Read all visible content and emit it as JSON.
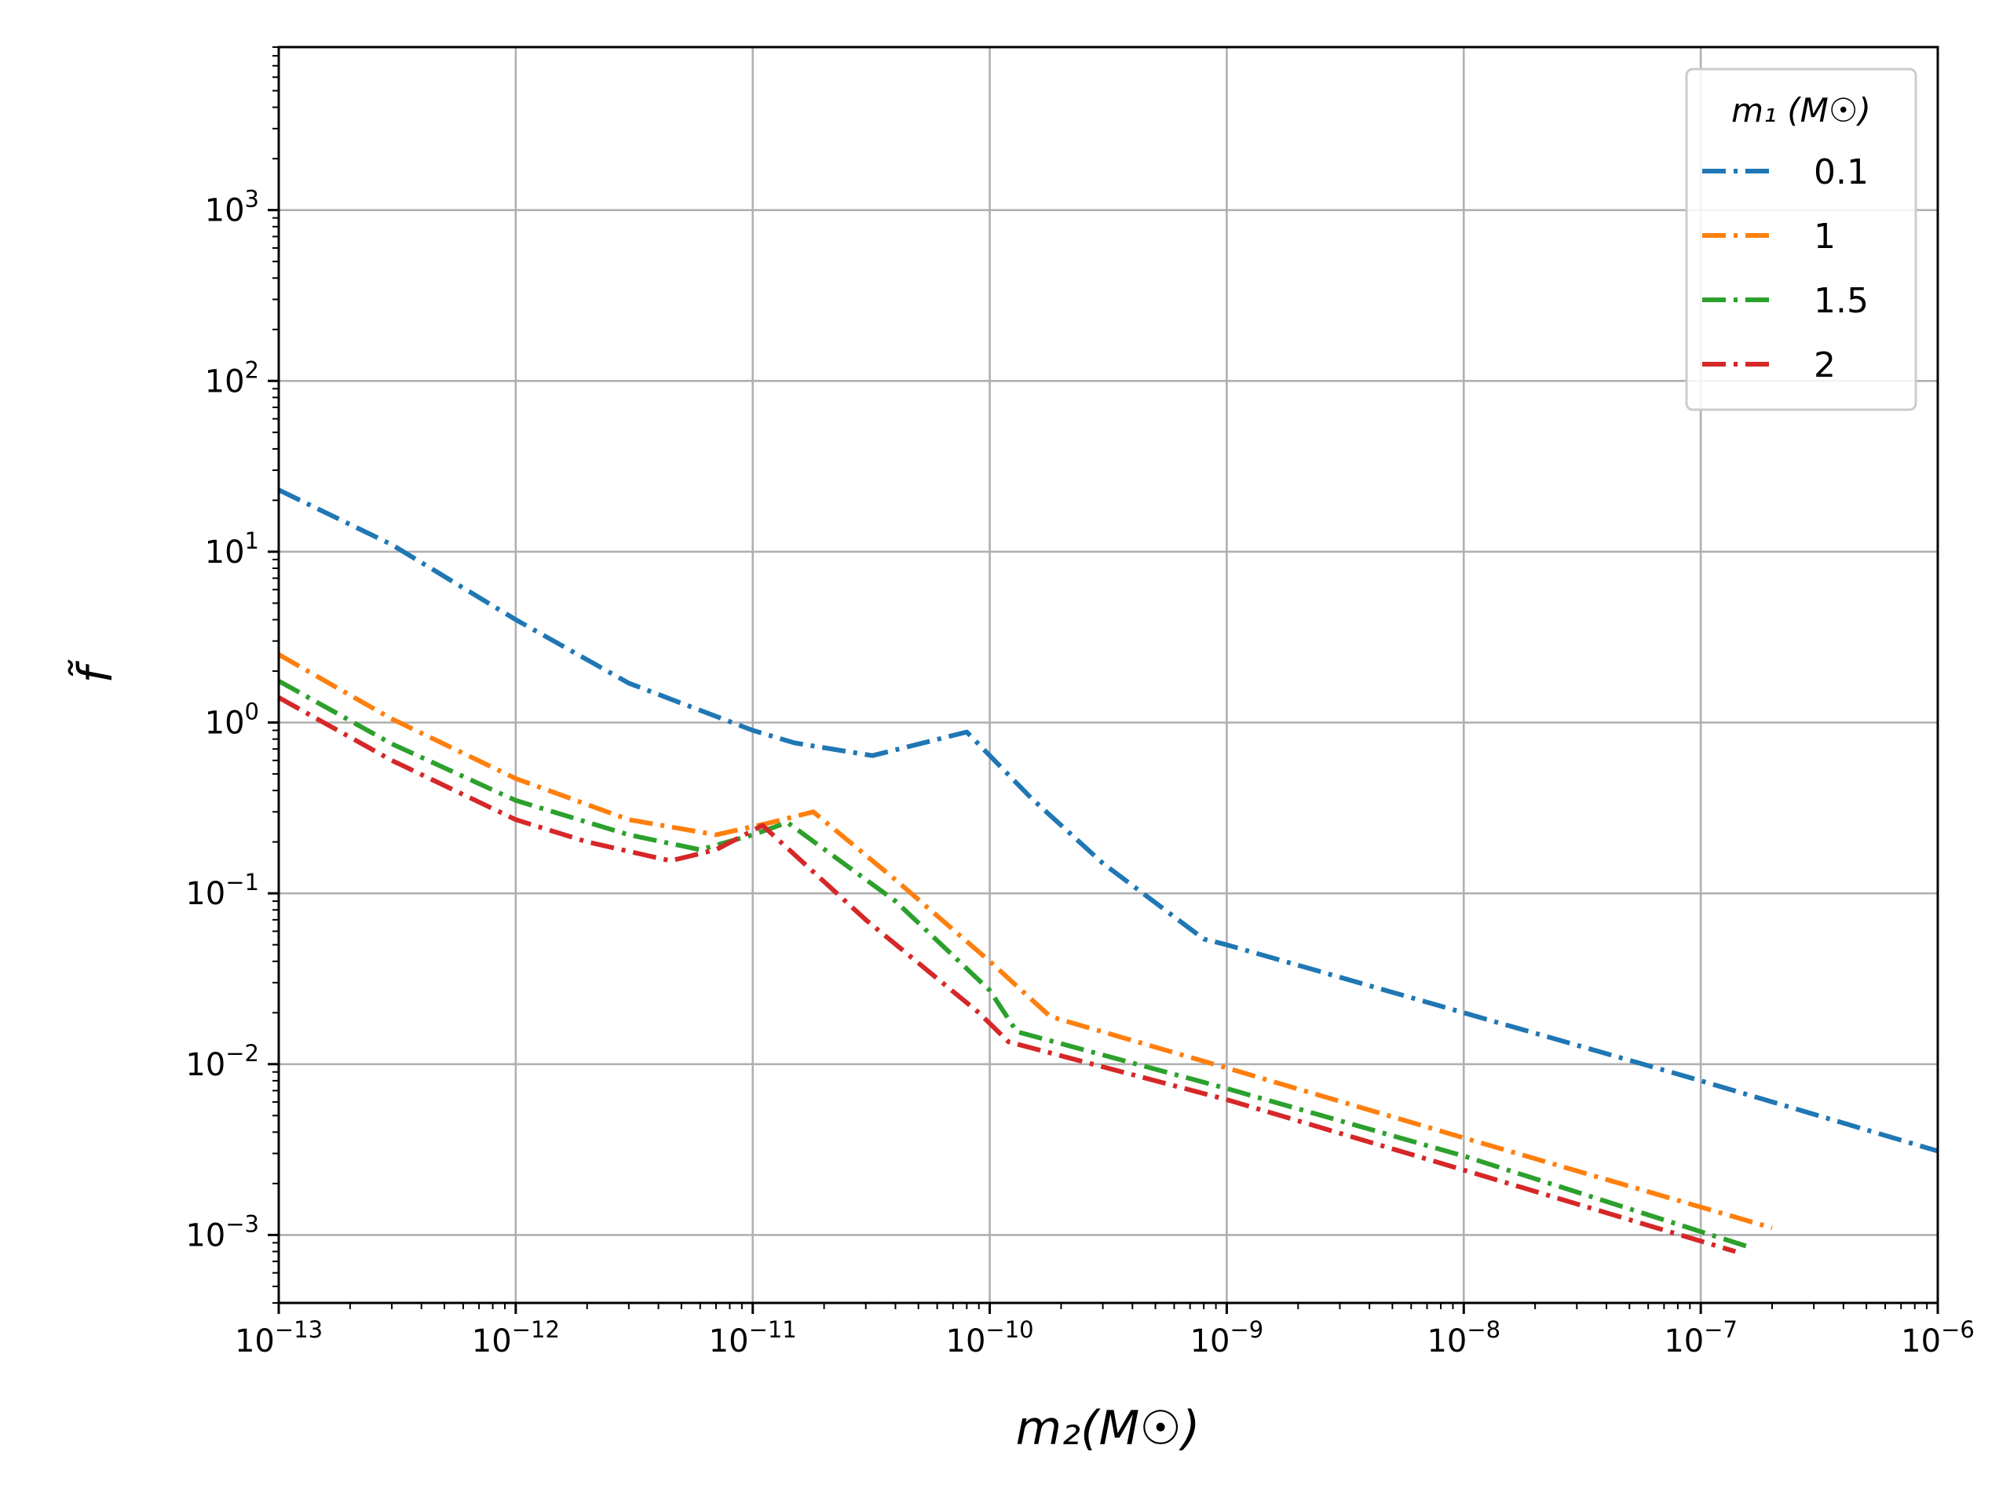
{
  "chart_data": {
    "type": "line",
    "xscale": "log",
    "yscale": "log",
    "xlim": [
      1e-13,
      1e-06
    ],
    "ylim": [
      0.0004,
      9000
    ],
    "xlabel": "m₂(M☉)",
    "ylabel": "f̃",
    "legend_title": "m₁ (M☉)",
    "legend_position": "top-right",
    "grid": true,
    "xticks": [
      {
        "exp": "−13",
        "base": "10"
      },
      {
        "exp": "−12",
        "base": "10"
      },
      {
        "exp": "−11",
        "base": "10"
      },
      {
        "exp": "−10",
        "base": "10"
      },
      {
        "exp": "−9",
        "base": "10"
      },
      {
        "exp": "−8",
        "base": "10"
      },
      {
        "exp": "−7",
        "base": "10"
      },
      {
        "exp": "−6",
        "base": "10"
      }
    ],
    "yticks": [
      {
        "exp": "−3",
        "base": "10"
      },
      {
        "exp": "−2",
        "base": "10"
      },
      {
        "exp": "−1",
        "base": "10"
      },
      {
        "exp": "0",
        "base": "10"
      },
      {
        "exp": "1",
        "base": "10"
      },
      {
        "exp": "2",
        "base": "10"
      },
      {
        "exp": "3",
        "base": "10"
      }
    ],
    "series": [
      {
        "name": "0.1",
        "color": "#1f77b4",
        "x": [
          1e-13,
          3e-13,
          1e-12,
          3e-12,
          1e-11,
          1.5e-11,
          3.2e-11,
          8e-11,
          1.5e-10,
          3e-10,
          8e-10,
          1e-09,
          1e-08,
          1e-07,
          1e-06
        ],
        "y": [
          23,
          11,
          4,
          1.7,
          0.9,
          0.76,
          0.64,
          0.88,
          0.36,
          0.15,
          0.054,
          0.05,
          0.02,
          0.008,
          0.0031
        ]
      },
      {
        "name": "1",
        "color": "#ff7f0e",
        "x": [
          1e-13,
          3e-13,
          1e-12,
          3e-12,
          7e-12,
          1.2e-11,
          1.8e-11,
          4e-11,
          1e-10,
          1.8e-10,
          1e-09,
          1e-08,
          2e-07
        ],
        "y": [
          2.5,
          1.05,
          0.47,
          0.27,
          0.22,
          0.26,
          0.3,
          0.12,
          0.04,
          0.019,
          0.0095,
          0.0037,
          0.0011
        ]
      },
      {
        "name": "1.5",
        "color": "#2ca02c",
        "x": [
          1e-13,
          3e-13,
          1e-12,
          3e-12,
          6e-12,
          1e-11,
          1.4e-11,
          4e-11,
          1e-10,
          1.3e-10,
          1e-09,
          1e-08,
          1.6e-07
        ],
        "y": [
          1.75,
          0.75,
          0.35,
          0.22,
          0.18,
          0.22,
          0.26,
          0.09,
          0.027,
          0.0155,
          0.0072,
          0.0029,
          0.00085
        ]
      },
      {
        "name": "2",
        "color": "#d62728",
        "x": [
          1e-13,
          3e-13,
          1e-12,
          2e-12,
          4.5e-12,
          7e-12,
          1.1e-11,
          3e-11,
          9e-11,
          1.2e-10,
          1e-09,
          1e-08,
          1.4e-07
        ],
        "y": [
          1.4,
          0.6,
          0.27,
          0.2,
          0.155,
          0.18,
          0.25,
          0.07,
          0.02,
          0.0135,
          0.0062,
          0.0024,
          0.0008
        ]
      }
    ]
  }
}
